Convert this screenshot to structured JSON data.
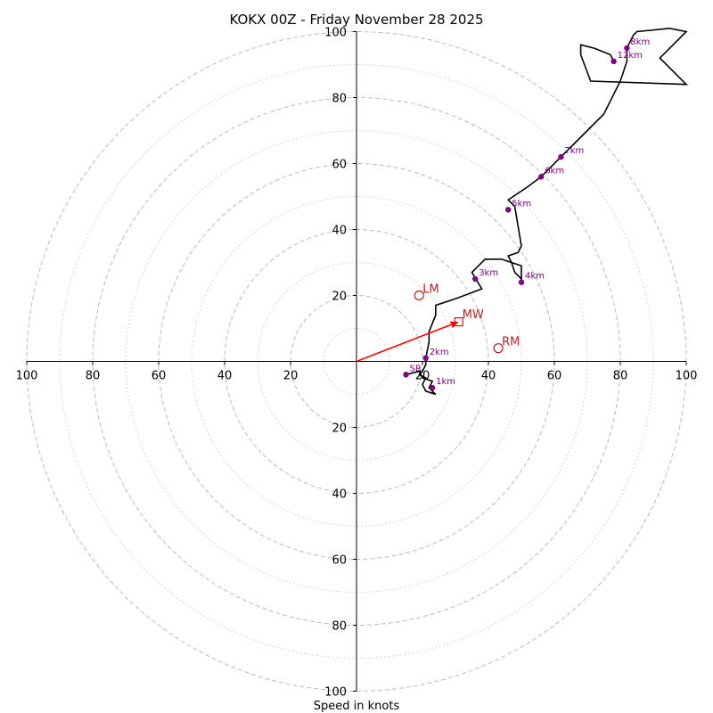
{
  "chart_data": {
    "type": "hodograph",
    "title": "KOKX 00Z - Friday November 28 2025",
    "xlabel": "Speed in knots",
    "range": [
      -100,
      100
    ],
    "ring_major": [
      20,
      40,
      60,
      80,
      100
    ],
    "ring_minor": [
      10,
      30,
      50,
      70,
      90
    ],
    "tick_labels": [
      "100",
      "80",
      "60",
      "40",
      "20",
      "20",
      "40",
      "60",
      "80",
      "100"
    ],
    "colors": {
      "trace": "#000000",
      "height_marker": "#800080",
      "motion": "#b22222",
      "shear_arrow": "#ff0000",
      "grid": "#bbbbbb"
    },
    "trace": [
      [
        15,
        -4
      ],
      [
        19,
        -3
      ],
      [
        20,
        -5
      ],
      [
        23,
        -6
      ],
      [
        22,
        -8
      ],
      [
        24,
        -10
      ],
      [
        21,
        -9
      ],
      [
        20,
        -7
      ],
      [
        21,
        -5
      ],
      [
        19,
        -4
      ],
      [
        20,
        -3
      ],
      [
        21,
        -1
      ],
      [
        21,
        1
      ],
      [
        22,
        6
      ],
      [
        22,
        9
      ],
      [
        24,
        14
      ],
      [
        24,
        17
      ],
      [
        30,
        19
      ],
      [
        38,
        22
      ],
      [
        35,
        27
      ],
      [
        39,
        31
      ],
      [
        41,
        31
      ],
      [
        44,
        31
      ],
      [
        47,
        30
      ],
      [
        50,
        29
      ],
      [
        50,
        25
      ],
      [
        48,
        27
      ],
      [
        47,
        30
      ],
      [
        46,
        32
      ],
      [
        49,
        33
      ],
      [
        50,
        35
      ],
      [
        48,
        47
      ],
      [
        46,
        49
      ],
      [
        52,
        53
      ],
      [
        56,
        56
      ],
      [
        62,
        62
      ],
      [
        65,
        65
      ],
      [
        70,
        70
      ],
      [
        75,
        75
      ],
      [
        78,
        81
      ],
      [
        80,
        85
      ],
      [
        82,
        91
      ],
      [
        82,
        95
      ],
      [
        84,
        99
      ],
      [
        85,
        100
      ],
      [
        95,
        101
      ],
      [
        100,
        100
      ],
      [
        92,
        92
      ],
      [
        100,
        84
      ],
      [
        71,
        85
      ],
      [
        68,
        93
      ],
      [
        68,
        96
      ],
      [
        72,
        95
      ],
      [
        77,
        93
      ],
      [
        78,
        91
      ]
    ],
    "height_markers": [
      {
        "label": "SR",
        "u": 15,
        "v": -4
      },
      {
        "label": "1km",
        "u": 23,
        "v": -8
      },
      {
        "label": "2km",
        "u": 21,
        "v": 1
      },
      {
        "label": "3km",
        "u": 36,
        "v": 25
      },
      {
        "label": "4km",
        "u": 50,
        "v": 24
      },
      {
        "label": "5km",
        "u": 46,
        "v": 46
      },
      {
        "label": "6km",
        "u": 56,
        "v": 56
      },
      {
        "label": "7km",
        "u": 62,
        "v": 62
      },
      {
        "label": "8km",
        "u": 82,
        "v": 95
      },
      {
        "label": "12km",
        "u": 78,
        "v": 91
      }
    ],
    "storm_motion": {
      "LM": {
        "label": "LM",
        "u": 19,
        "v": 20
      },
      "RM": {
        "label": "RM",
        "u": 43,
        "v": 4
      },
      "MW": {
        "label": "MW",
        "u": 31,
        "v": 12
      }
    }
  }
}
